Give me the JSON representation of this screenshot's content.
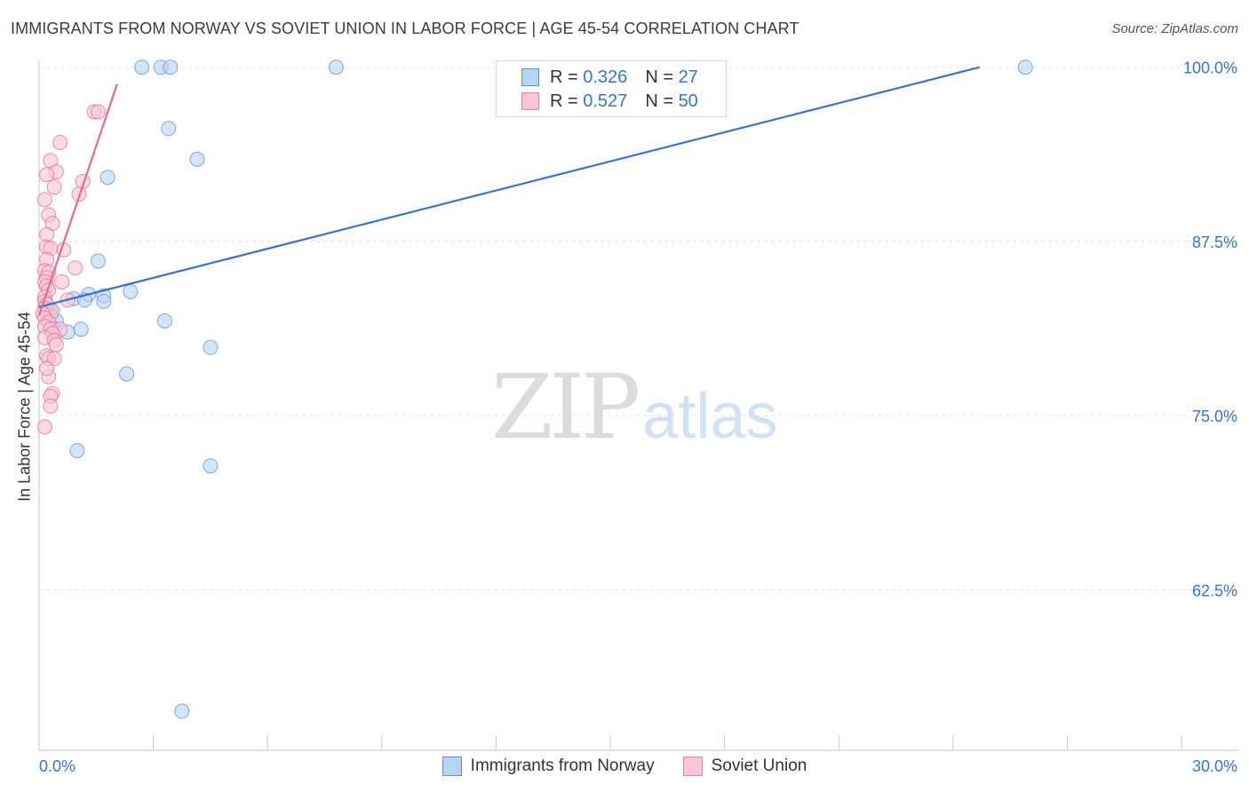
{
  "title": "IMMIGRANTS FROM NORWAY VS SOVIET UNION IN LABOR FORCE | AGE 45-54 CORRELATION CHART",
  "source": "Source: ZipAtlas.com",
  "watermark": {
    "zip": "ZIP",
    "atlas": "atlas"
  },
  "legend": {
    "r_label": "R =",
    "n_label": "N =",
    "norway": {
      "r": "0.326",
      "n": "27"
    },
    "soviet": {
      "r": "0.527",
      "n": "50"
    }
  },
  "bottom_legend": {
    "norway": "Immigrants from Norway",
    "soviet": "Soviet Union"
  },
  "chart_data": {
    "type": "scatter",
    "title": "IMMIGRANTS FROM NORWAY VS SOVIET UNION IN LABOR FORCE | AGE 45-54 CORRELATION CHART",
    "ylabel": "In Labor Force | Age 45-54",
    "xlabel": "",
    "xlim": [
      0,
      30
    ],
    "ylim": [
      51,
      101
    ],
    "x_tick_labels": [
      "0.0%",
      "30.0%"
    ],
    "y_ticks": [
      62.5,
      75.0,
      87.5,
      100.0
    ],
    "y_tick_labels": [
      "62.5%",
      "75.0%",
      "87.5%",
      "100.0%"
    ],
    "grid": "horizontal dashed",
    "legend_position": "top-center",
    "colors": {
      "norway": "#5a8fd6",
      "norway_fill": "#b8d4f5",
      "soviet": "#e06b96",
      "soviet_fill": "#f9c4d5",
      "axis_text": "#3b73c8"
    },
    "series": [
      {
        "name": "Immigrants from Norway",
        "color": "#5a8fd6",
        "points": [
          [
            2.7,
            100.0
          ],
          [
            3.2,
            100.0
          ],
          [
            3.45,
            100.0
          ],
          [
            7.8,
            100.0
          ],
          [
            25.9,
            100.0
          ],
          [
            3.4,
            95.6
          ],
          [
            4.15,
            93.4
          ],
          [
            1.8,
            92.1
          ],
          [
            1.55,
            86.1
          ],
          [
            2.4,
            83.9
          ],
          [
            1.3,
            83.7
          ],
          [
            1.7,
            83.6
          ],
          [
            0.9,
            83.4
          ],
          [
            1.2,
            83.3
          ],
          [
            1.7,
            83.2
          ],
          [
            0.3,
            82.6
          ],
          [
            0.3,
            82.2
          ],
          [
            0.45,
            81.8
          ],
          [
            3.3,
            81.8
          ],
          [
            0.35,
            81.3
          ],
          [
            1.1,
            81.2
          ],
          [
            0.75,
            81.0
          ],
          [
            4.5,
            79.9
          ],
          [
            2.3,
            78.0
          ],
          [
            1.0,
            72.5
          ],
          [
            4.5,
            71.4
          ],
          [
            3.75,
            53.8
          ]
        ],
        "trend": {
          "x": [
            0.0,
            24.7
          ],
          "y": [
            82.8,
            100.0
          ]
        }
      },
      {
        "name": "Soviet Union",
        "color": "#e06b96",
        "points": [
          [
            1.45,
            96.8
          ],
          [
            1.55,
            96.8
          ],
          [
            0.55,
            94.6
          ],
          [
            0.3,
            93.3
          ],
          [
            0.45,
            92.5
          ],
          [
            0.2,
            92.3
          ],
          [
            1.15,
            91.8
          ],
          [
            0.4,
            91.4
          ],
          [
            1.05,
            90.9
          ],
          [
            0.15,
            90.5
          ],
          [
            0.25,
            89.4
          ],
          [
            0.35,
            88.8
          ],
          [
            0.2,
            88.0
          ],
          [
            0.2,
            87.1
          ],
          [
            0.3,
            87.0
          ],
          [
            0.65,
            86.9
          ],
          [
            0.2,
            86.2
          ],
          [
            0.95,
            85.6
          ],
          [
            0.15,
            85.4
          ],
          [
            0.25,
            85.3
          ],
          [
            0.2,
            84.9
          ],
          [
            0.15,
            84.6
          ],
          [
            0.6,
            84.6
          ],
          [
            0.2,
            84.3
          ],
          [
            0.25,
            84.0
          ],
          [
            0.15,
            83.5
          ],
          [
            0.75,
            83.3
          ],
          [
            0.15,
            83.2
          ],
          [
            0.2,
            83.0
          ],
          [
            0.15,
            82.7
          ],
          [
            0.35,
            82.5
          ],
          [
            0.1,
            82.3
          ],
          [
            0.15,
            82.0
          ],
          [
            0.25,
            81.7
          ],
          [
            0.15,
            81.4
          ],
          [
            0.3,
            81.2
          ],
          [
            0.55,
            81.2
          ],
          [
            0.35,
            80.9
          ],
          [
            0.15,
            80.6
          ],
          [
            0.4,
            80.4
          ],
          [
            0.45,
            80.1
          ],
          [
            0.2,
            79.3
          ],
          [
            0.25,
            79.1
          ],
          [
            0.4,
            79.1
          ],
          [
            0.25,
            77.8
          ],
          [
            0.35,
            76.6
          ],
          [
            0.3,
            76.4
          ],
          [
            0.3,
            75.7
          ],
          [
            0.15,
            74.2
          ],
          [
            0.2,
            78.4
          ]
        ],
        "trend": {
          "x": [
            0.0,
            2.05
          ],
          "y": [
            82.2,
            98.8
          ]
        }
      }
    ]
  }
}
